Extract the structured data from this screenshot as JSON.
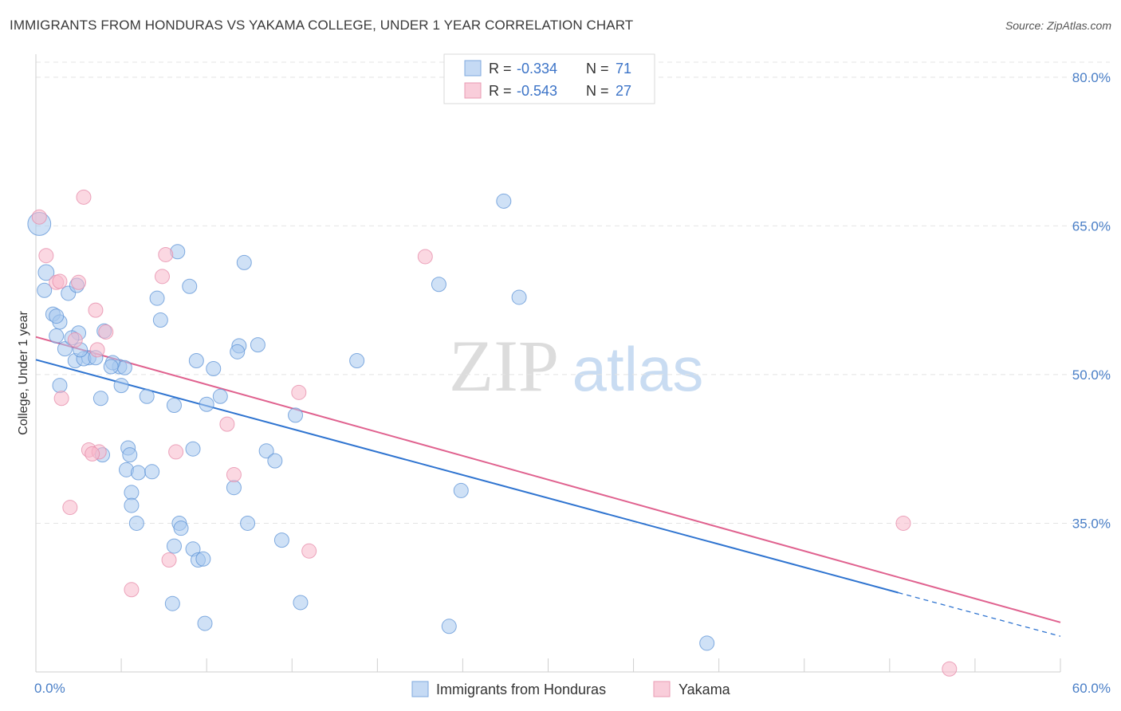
{
  "title": "IMMIGRANTS FROM HONDURAS VS YAKAMA COLLEGE, UNDER 1 YEAR CORRELATION CHART",
  "source": "Source: ZipAtlas.com",
  "watermark": {
    "zip": "ZIP",
    "atlas": "atlas"
  },
  "colors": {
    "blue_fill": "#a8c8ef",
    "blue_stroke": "#5b92d6",
    "blue_line": "#2f74d0",
    "pink_fill": "#f7b8cb",
    "pink_stroke": "#e58aa8",
    "pink_line": "#e0628f",
    "axis_text": "#4a7fc7",
    "grid": "#e4e4e4"
  },
  "legend_top": {
    "rows": [
      {
        "r_label": "R = ",
        "r_value": "-0.334",
        "n_label": "N = ",
        "n_value": "71",
        "series": "blue"
      },
      {
        "r_label": "R = ",
        "r_value": "-0.543",
        "n_label": "N = ",
        "n_value": "27",
        "series": "pink"
      }
    ]
  },
  "legend_bottom": {
    "items": [
      {
        "label": "Immigrants from Honduras",
        "series": "blue"
      },
      {
        "label": "Yakama",
        "series": "pink"
      }
    ]
  },
  "chart_data": {
    "type": "scatter",
    "title": "IMMIGRANTS FROM HONDURAS VS YAKAMA COLLEGE, UNDER 1 YEAR CORRELATION CHART",
    "xlabel": "",
    "ylabel": "College, Under 1 year",
    "xlim": [
      0,
      60
    ],
    "ylim": [
      20,
      82
    ],
    "x_tick_labels": [
      {
        "value": 0,
        "label": "0.0%"
      },
      {
        "value": 60,
        "label": "60.0%"
      }
    ],
    "y_tick_labels": [
      {
        "value": 80,
        "label": "80.0%"
      },
      {
        "value": 65,
        "label": "65.0%"
      },
      {
        "value": 50,
        "label": "50.0%"
      },
      {
        "value": 35,
        "label": "35.0%"
      }
    ],
    "grid": true,
    "series": [
      {
        "name": "Immigrants from Honduras",
        "color": "blue",
        "R": -0.334,
        "N": 71,
        "trend": {
          "x0": 0,
          "y0": 51.5,
          "x1": 50.5,
          "y1": 28.0,
          "dash_to_x": 60,
          "dash_to_y": 23.6
        },
        "points": [
          [
            0.2,
            65.2,
            1.6
          ],
          [
            0.6,
            60.3,
            1.1
          ],
          [
            0.5,
            58.5,
            1
          ],
          [
            1.0,
            56.1,
            1
          ],
          [
            1.4,
            55.3,
            1
          ],
          [
            1.2,
            53.9,
            1
          ],
          [
            1.9,
            58.2,
            1
          ],
          [
            2.4,
            59.0,
            1
          ],
          [
            2.5,
            54.2,
            1
          ],
          [
            1.7,
            52.6,
            1
          ],
          [
            2.1,
            53.7,
            1
          ],
          [
            2.3,
            51.4,
            1
          ],
          [
            3.1,
            51.7,
            1
          ],
          [
            2.8,
            51.6,
            1
          ],
          [
            3.5,
            51.7,
            1
          ],
          [
            1.4,
            48.9,
            1
          ],
          [
            3.8,
            47.6,
            1
          ],
          [
            3.9,
            41.9,
            1
          ],
          [
            4.0,
            54.4,
            1
          ],
          [
            4.9,
            50.8,
            1
          ],
          [
            5.0,
            48.9,
            1
          ],
          [
            5.2,
            50.7,
            1
          ],
          [
            5.4,
            42.6,
            1
          ],
          [
            5.5,
            41.9,
            1
          ],
          [
            4.5,
            51.2,
            1
          ],
          [
            4.4,
            50.8,
            1
          ],
          [
            5.6,
            38.1,
            1
          ],
          [
            5.3,
            40.4,
            1
          ],
          [
            5.6,
            36.8,
            1
          ],
          [
            5.9,
            35.0,
            1
          ],
          [
            6.0,
            40.1,
            1
          ],
          [
            6.8,
            40.2,
            1
          ],
          [
            7.1,
            57.7,
            1
          ],
          [
            7.3,
            55.5,
            1
          ],
          [
            8.3,
            62.4,
            1
          ],
          [
            8.1,
            46.9,
            1
          ],
          [
            9.2,
            42.5,
            1
          ],
          [
            9.0,
            58.9,
            1
          ],
          [
            9.4,
            51.4,
            1
          ],
          [
            10.4,
            50.6,
            1
          ],
          [
            10.8,
            47.8,
            1
          ],
          [
            11.9,
            52.9,
            1
          ],
          [
            11.8,
            52.3,
            1
          ],
          [
            11.6,
            38.6,
            1
          ],
          [
            12.2,
            61.3,
            1
          ],
          [
            12.4,
            35.0,
            1
          ],
          [
            13.5,
            42.3,
            1
          ],
          [
            14.0,
            41.3,
            1
          ],
          [
            14.4,
            33.3,
            1
          ],
          [
            15.2,
            45.9,
            1
          ],
          [
            15.5,
            27.0,
            1
          ],
          [
            18.8,
            51.4,
            1
          ],
          [
            23.6,
            59.1,
            1
          ],
          [
            24.2,
            24.6,
            1
          ],
          [
            24.9,
            38.3,
            1
          ],
          [
            27.4,
            67.5,
            1
          ],
          [
            28.3,
            57.8,
            1
          ],
          [
            39.3,
            22.9,
            1
          ],
          [
            8.1,
            32.7,
            1
          ],
          [
            8.4,
            35.0,
            1
          ],
          [
            8.5,
            34.5,
            1
          ],
          [
            9.2,
            32.4,
            1
          ],
          [
            9.5,
            31.3,
            1
          ],
          [
            9.8,
            31.4,
            1
          ],
          [
            8.0,
            26.9,
            1
          ],
          [
            9.9,
            24.9,
            1
          ],
          [
            1.2,
            55.9,
            1
          ],
          [
            2.6,
            52.5,
            1
          ],
          [
            10.0,
            47.0,
            1
          ],
          [
            6.5,
            47.8,
            1
          ],
          [
            13.0,
            53.0,
            1
          ]
        ]
      },
      {
        "name": "Yakama",
        "color": "pink",
        "R": -0.543,
        "N": 27,
        "trend": {
          "x0": 0,
          "y0": 53.8,
          "x1": 60,
          "y1": 25.0
        },
        "points": [
          [
            0.2,
            65.9,
            1
          ],
          [
            0.6,
            62.0,
            1
          ],
          [
            1.2,
            59.3,
            1
          ],
          [
            1.4,
            59.4,
            1
          ],
          [
            2.3,
            53.5,
            1
          ],
          [
            2.5,
            59.3,
            1
          ],
          [
            2.8,
            67.9,
            1
          ],
          [
            3.5,
            56.5,
            1
          ],
          [
            3.6,
            52.5,
            1
          ],
          [
            4.1,
            54.3,
            1
          ],
          [
            1.5,
            47.6,
            1
          ],
          [
            3.1,
            42.4,
            1
          ],
          [
            3.7,
            42.2,
            1
          ],
          [
            2.0,
            36.6,
            1
          ],
          [
            5.6,
            28.3,
            1
          ],
          [
            7.4,
            59.9,
            1
          ],
          [
            7.6,
            62.1,
            1
          ],
          [
            8.2,
            42.2,
            1
          ],
          [
            7.8,
            31.3,
            1
          ],
          [
            11.2,
            45.0,
            1
          ],
          [
            11.6,
            39.9,
            1
          ],
          [
            15.4,
            48.2,
            1
          ],
          [
            16.0,
            32.2,
            1
          ],
          [
            22.8,
            61.9,
            1
          ],
          [
            50.8,
            35.0,
            1
          ],
          [
            53.5,
            20.3,
            1
          ],
          [
            3.3,
            42.0,
            1
          ]
        ]
      }
    ]
  }
}
